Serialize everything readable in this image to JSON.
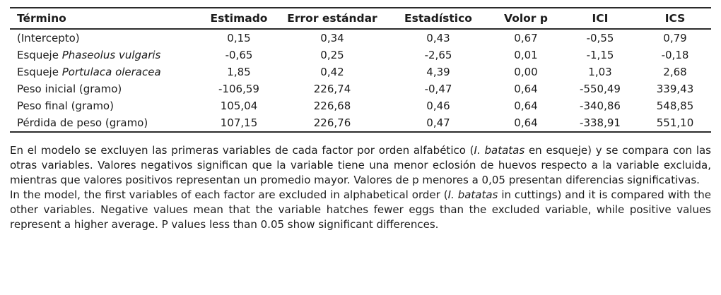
{
  "table": {
    "headers": {
      "term": "Término",
      "estimate": "Estimado",
      "std_error": "Error estándar",
      "statistic": "Estadístico",
      "p_value": "Volor p",
      "ici": "ICI",
      "ics": "ICS"
    },
    "rows": [
      {
        "term_pre": "(Intercepto)",
        "term_italic": "",
        "estimate": "0,15",
        "std_error": "0,34",
        "statistic": "0,43",
        "p_value": "0,67",
        "ici": "-0,55",
        "ics": "0,79"
      },
      {
        "term_pre": "Esqueje ",
        "term_italic": "Phaseolus vulgaris",
        "estimate": "-0,65",
        "std_error": "0,25",
        "statistic": "-2,65",
        "p_value": "0,01",
        "ici": "-1,15",
        "ics": "-0,18"
      },
      {
        "term_pre": "Esqueje ",
        "term_italic": "Portulaca oleracea",
        "estimate": "1,85",
        "std_error": "0,42",
        "statistic": "4,39",
        "p_value": "0,00",
        "ici": "1,03",
        "ics": "2,68"
      },
      {
        "term_pre": "Peso inicial (gramo)",
        "term_italic": "",
        "estimate": "-106,59",
        "std_error": "226,74",
        "statistic": "-0,47",
        "p_value": "0,64",
        "ici": "-550,49",
        "ics": "339,43"
      },
      {
        "term_pre": "Peso final (gramo)",
        "term_italic": "",
        "estimate": "105,04",
        "std_error": "226,68",
        "statistic": "0,46",
        "p_value": "0,64",
        "ici": "-340,86",
        "ics": "548,85"
      },
      {
        "term_pre": "Pérdida de peso (gramo)",
        "term_italic": "",
        "estimate": "107,15",
        "std_error": "226,76",
        "statistic": "0,47",
        "p_value": "0,64",
        "ici": "-338,91",
        "ics": "551,10"
      }
    ]
  },
  "notes": {
    "es": {
      "pre": "En el modelo se excluyen las primeras variables de cada factor por orden alfabético (",
      "italic": "I. batatas",
      "post": " en esqueje) y se compara con las otras variables. Valores negativos significan que la variable tiene una menor eclosión de huevos respecto a la variable excluida, mientras que valores positivos representan un promedio mayor. Valores de p menores a 0,05 presentan diferencias significativas."
    },
    "en": {
      "pre": "In the model, the first variables of each factor are excluded in alphabetical order (",
      "italic": "I. batatas",
      "post": " in cuttings) and it is compared with the other variables. Negative values mean that the variable hatches fewer eggs than the excluded variable, while positive values represent a higher average. P values less than 0.05 show significant differences."
    }
  }
}
